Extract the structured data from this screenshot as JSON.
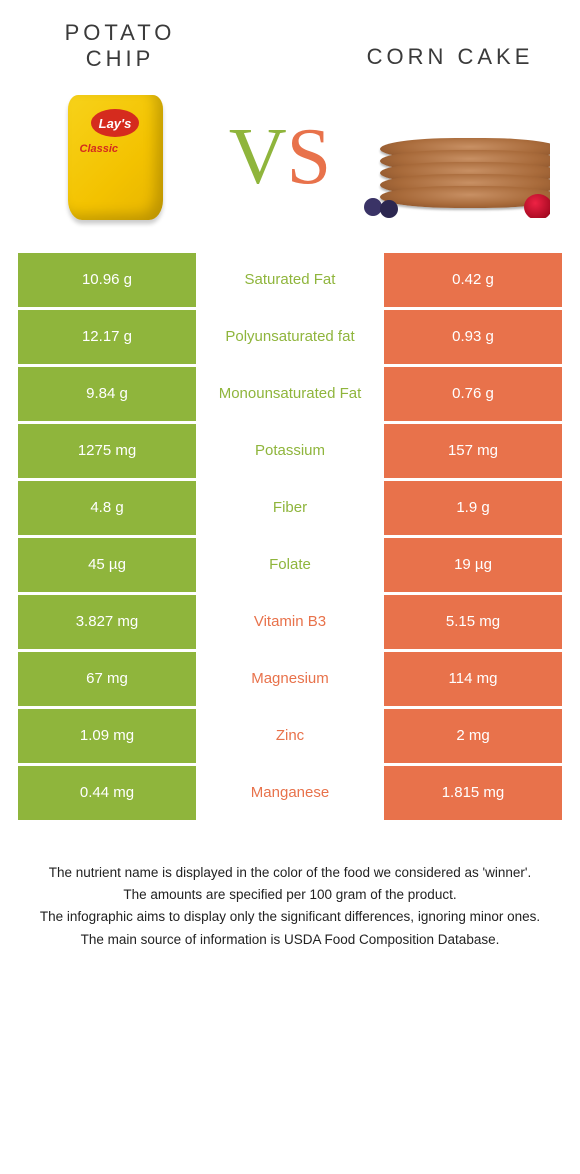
{
  "colors": {
    "left": "#8fb53c",
    "right": "#e8724b",
    "vs_v": "#8fb53c",
    "vs_s": "#e8724b"
  },
  "titles": {
    "left_line1": "POTATO",
    "left_line2": "CHIP",
    "right": "CORN CAKE"
  },
  "vs": {
    "v": "V",
    "s": "S"
  },
  "rows": [
    {
      "left": "10.96 g",
      "label": "Saturated Fat",
      "right": "0.42 g",
      "winner": "left"
    },
    {
      "left": "12.17 g",
      "label": "Polyunsaturated fat",
      "right": "0.93 g",
      "winner": "left"
    },
    {
      "left": "9.84 g",
      "label": "Monounsaturated Fat",
      "right": "0.76 g",
      "winner": "left"
    },
    {
      "left": "1275 mg",
      "label": "Potassium",
      "right": "157 mg",
      "winner": "left"
    },
    {
      "left": "4.8 g",
      "label": "Fiber",
      "right": "1.9 g",
      "winner": "left"
    },
    {
      "left": "45 µg",
      "label": "Folate",
      "right": "19 µg",
      "winner": "left"
    },
    {
      "left": "3.827 mg",
      "label": "Vitamin B3",
      "right": "5.15 mg",
      "winner": "right"
    },
    {
      "left": "67 mg",
      "label": "Magnesium",
      "right": "114 mg",
      "winner": "right"
    },
    {
      "left": "1.09 mg",
      "label": "Zinc",
      "right": "2 mg",
      "winner": "right"
    },
    {
      "left": "0.44 mg",
      "label": "Manganese",
      "right": "1.815 mg",
      "winner": "right"
    }
  ],
  "footer": {
    "l1": "The nutrient name is displayed in the color of the food we considered as 'winner'.",
    "l2": "The amounts are specified per 100 gram of the product.",
    "l3": "The infographic aims to display only the significant differences, ignoring minor ones.",
    "l4": "The main source of information is USDA Food Composition Database."
  }
}
